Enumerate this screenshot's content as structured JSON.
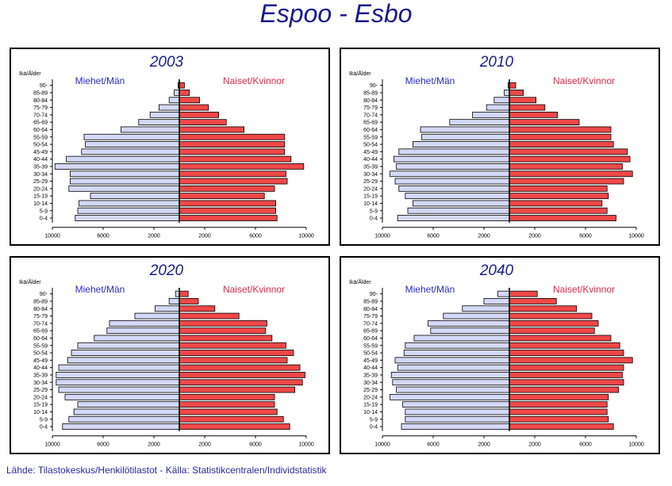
{
  "title": "Espoo  -  Esbo",
  "source": "Lähde: Tilastokeskus/Henkilötilastot  -  Källa: Statistikcentralen/Individstatistik",
  "labels": {
    "age_axis": "Ikä/Ålder",
    "men": "Miehet/Män",
    "women": "Naiset/Kvinnor"
  },
  "colors": {
    "men": "#d4d8f8",
    "women": "#f04848",
    "title": "#1a1a8c",
    "men_label": "#2a2acc",
    "women_label": "#e0284a"
  },
  "chart_data": [
    {
      "type": "bar",
      "year": "2003",
      "categories": [
        "0-4",
        "5-9",
        "10-14",
        "15-19",
        "20-24",
        "25-29",
        "30-34",
        "35-39",
        "40-44",
        "45-49",
        "50-54",
        "55-59",
        "60-64",
        "65-69",
        "70-74",
        "75-79",
        "80-84",
        "85-89",
        "90-"
      ],
      "x_ticks": [
        "10000",
        "6000",
        "2000",
        "2000",
        "6000",
        "10000"
      ],
      "xlim": [
        -10000,
        10000
      ],
      "series": [
        {
          "name": "Miehet/Män",
          "values": [
            8200,
            8000,
            7900,
            7000,
            8700,
            8600,
            8600,
            9800,
            8900,
            7700,
            7400,
            7500,
            4600,
            3200,
            2300,
            1600,
            800,
            400,
            100
          ]
        },
        {
          "name": "Naiset/Kvinnor",
          "values": [
            7700,
            7600,
            7600,
            6700,
            7500,
            8500,
            8400,
            9800,
            8800,
            8300,
            8300,
            8300,
            5100,
            3700,
            3100,
            2300,
            1600,
            800,
            400
          ]
        }
      ]
    },
    {
      "type": "bar",
      "year": "2010",
      "categories": [
        "0-4",
        "5-9",
        "10-14",
        "15-19",
        "20-24",
        "25-29",
        "30-34",
        "35-39",
        "40-44",
        "45-49",
        "50-54",
        "55-59",
        "60-64",
        "65-69",
        "70-74",
        "75-79",
        "80-84",
        "85-89",
        "90-"
      ],
      "x_ticks": [
        "10000",
        "6000",
        "2000",
        "2000",
        "6000",
        "10000"
      ],
      "xlim": [
        -10000,
        10000
      ],
      "series": [
        {
          "name": "Miehet/Män",
          "values": [
            8800,
            8000,
            7600,
            8200,
            8700,
            9000,
            9400,
            8900,
            9100,
            8700,
            7600,
            6900,
            7000,
            4700,
            2900,
            1800,
            1200,
            400,
            100
          ]
        },
        {
          "name": "Naiset/Kvinnor",
          "values": [
            8400,
            7700,
            7300,
            7800,
            7700,
            9000,
            9700,
            8900,
            9500,
            9300,
            8200,
            8000,
            8000,
            5500,
            3800,
            2800,
            2100,
            1100,
            500
          ]
        }
      ]
    },
    {
      "type": "bar",
      "year": "2020",
      "categories": [
        "0-4",
        "5-9",
        "10-14",
        "15-19",
        "20-24",
        "25-29",
        "30-34",
        "35-39",
        "40-44",
        "45-49",
        "50-54",
        "55-59",
        "60-64",
        "65-69",
        "70-74",
        "75-79",
        "80-84",
        "85-89",
        "90-"
      ],
      "x_ticks": [
        "10000",
        "6000",
        "2000",
        "2000",
        "6000",
        "10000"
      ],
      "xlim": [
        -10000,
        10000
      ],
      "series": [
        {
          "name": "Miehet/Män",
          "values": [
            9200,
            8700,
            8300,
            8000,
            9000,
            9500,
            9700,
            9700,
            9500,
            8800,
            8500,
            8000,
            6700,
            5700,
            5500,
            3500,
            1900,
            800,
            300
          ]
        },
        {
          "name": "Naiset/Kvinnor",
          "values": [
            8700,
            8200,
            7700,
            7500,
            7500,
            9100,
            9700,
            9900,
            9500,
            8500,
            9000,
            8400,
            7300,
            6800,
            6900,
            4700,
            2800,
            1500,
            700
          ]
        }
      ]
    },
    {
      "type": "bar",
      "year": "2040",
      "categories": [
        "0-4",
        "5-9",
        "10-14",
        "15-19",
        "20-24",
        "25-29",
        "30-34",
        "35-39",
        "40-44",
        "45-49",
        "50-54",
        "55-59",
        "60-64",
        "65-69",
        "70-74",
        "75-79",
        "80-84",
        "85-89",
        "90-"
      ],
      "x_ticks": [
        "10000",
        "6000",
        "2000",
        "2000",
        "6000",
        "10000"
      ],
      "xlim": [
        -10000,
        10000
      ],
      "series": [
        {
          "name": "Miehet/Män",
          "values": [
            8500,
            8200,
            8200,
            8400,
            9400,
            8900,
            9200,
            9300,
            8800,
            9000,
            8300,
            8200,
            7500,
            6200,
            6400,
            5200,
            3700,
            2000,
            900
          ]
        },
        {
          "name": "Naiset/Kvinnor",
          "values": [
            8200,
            7800,
            7700,
            7700,
            7800,
            8600,
            9000,
            8900,
            9000,
            9700,
            9000,
            8700,
            8000,
            6700,
            7000,
            6500,
            5300,
            3700,
            2200
          ]
        }
      ]
    }
  ]
}
